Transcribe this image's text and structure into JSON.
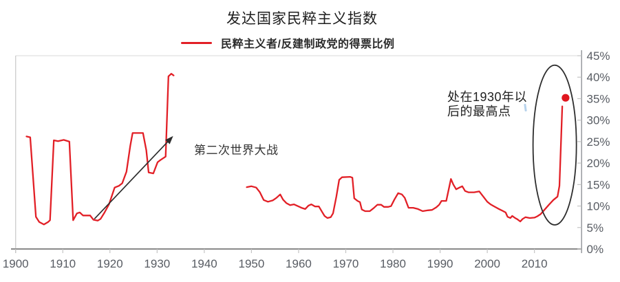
{
  "figure": {
    "title": "发达国家民粹主义指数",
    "legend_label": "民粹主义者/反建制政党的得票比例"
  },
  "annotations": {
    "ww2": "第二次世界大战",
    "peak_line1": "处在1930年以",
    "peak_line2": "后的最高点"
  },
  "colors": {
    "series_red": "#e21f26",
    "dot_red": "#e0161f",
    "axis_dark": "#8a8a8a",
    "axis_right": "#9da0a4",
    "tick_gray": "#c4c4c4",
    "border_light": "#d9d9d9",
    "tick_label": "#585c63",
    "annotation_ink": "#2d2d2d"
  },
  "chart_data": {
    "type": "line",
    "title": "发达国家民粹主义指数",
    "legend": [
      "民粹主义者/反建制政党的得票比例"
    ],
    "legend_position": "top",
    "grid": false,
    "xlabel": "",
    "ylabel": "",
    "xlim": [
      1900,
      2020
    ],
    "ylim": [
      0,
      45
    ],
    "x_ticks": [
      1900,
      1910,
      1920,
      1930,
      1940,
      1950,
      1960,
      1970,
      1980,
      1990,
      2000,
      2010
    ],
    "y_tick_values": [
      0,
      5,
      10,
      15,
      20,
      25,
      30,
      35,
      40,
      45
    ],
    "y_tick_labels": [
      "0%",
      "5%",
      "10%",
      "15%",
      "20%",
      "25%",
      "30%",
      "35%",
      "40%",
      "45%"
    ],
    "series": [
      {
        "name": "民粹主义者/反建制政党的得票比例",
        "color": "#e21f26",
        "unit": "percent vote share",
        "segments": [
          [
            [
              1902.3,
              26.2
            ],
            [
              1903.1,
              26.0
            ],
            [
              1904.3,
              7.5
            ],
            [
              1905,
              6.3
            ],
            [
              1906,
              5.7
            ],
            [
              1906.9,
              6.3
            ],
            [
              1907.3,
              6.7
            ],
            [
              1908.1,
              25.3
            ],
            [
              1909,
              25.1
            ],
            [
              1910.2,
              25.4
            ],
            [
              1911.4,
              25.0
            ],
            [
              1912.2,
              6.7
            ],
            [
              1913,
              8.3
            ],
            [
              1913.6,
              8.5
            ],
            [
              1914.3,
              7.8
            ],
            [
              1915.8,
              7.8
            ],
            [
              1916.5,
              6.8
            ],
            [
              1917.4,
              6.6
            ],
            [
              1918,
              7.0
            ],
            [
              1918.8,
              8.4
            ],
            [
              1919.8,
              10.4
            ],
            [
              1921,
              14.3
            ],
            [
              1921.9,
              14.7
            ],
            [
              1922.6,
              15.3
            ],
            [
              1923.5,
              18.0
            ],
            [
              1924.3,
              24.0
            ],
            [
              1924.8,
              27.0
            ],
            [
              1927,
              27.0
            ],
            [
              1927.7,
              23.0
            ],
            [
              1928.2,
              17.8
            ],
            [
              1929.2,
              17.6
            ],
            [
              1930.1,
              20.2
            ],
            [
              1930.7,
              20.7
            ],
            [
              1931.8,
              21.5
            ],
            [
              1932.4,
              40.2
            ],
            [
              1933,
              40.8
            ],
            [
              1933.5,
              40.4
            ]
          ],
          [
            [
              1949,
              14.4
            ],
            [
              1950,
              14.6
            ],
            [
              1951,
              14.3
            ],
            [
              1951.8,
              13.2
            ],
            [
              1952.6,
              11.4
            ],
            [
              1953.5,
              11.0
            ],
            [
              1954.5,
              11.3
            ],
            [
              1955.3,
              11.9
            ],
            [
              1956.1,
              12.7
            ],
            [
              1956.7,
              11.5
            ],
            [
              1957.4,
              10.7
            ],
            [
              1958.2,
              10.2
            ],
            [
              1959,
              10.4
            ],
            [
              1959.8,
              10.0
            ],
            [
              1960.6,
              9.6
            ],
            [
              1961.4,
              9.3
            ],
            [
              1962.1,
              10.1
            ],
            [
              1962.7,
              10.4
            ],
            [
              1963.5,
              9.9
            ],
            [
              1964.3,
              9.9
            ],
            [
              1965,
              8.6
            ],
            [
              1965.5,
              7.7
            ],
            [
              1966.1,
              7.2
            ],
            [
              1966.8,
              7.4
            ],
            [
              1967.3,
              8.3
            ],
            [
              1968,
              12.2
            ],
            [
              1968.6,
              16.1
            ],
            [
              1969.2,
              16.7
            ],
            [
              1970.9,
              16.8
            ],
            [
              1971.4,
              16.6
            ],
            [
              1971.8,
              11.8
            ],
            [
              1972.5,
              11.2
            ],
            [
              1973,
              10.9
            ],
            [
              1973.4,
              9.2
            ],
            [
              1974.1,
              8.8
            ],
            [
              1975.1,
              8.8
            ],
            [
              1975.9,
              9.5
            ],
            [
              1976.7,
              10.3
            ],
            [
              1977.5,
              10.3
            ],
            [
              1978.1,
              9.8
            ],
            [
              1979,
              9.8
            ],
            [
              1979.6,
              10.0
            ],
            [
              1980.3,
              11.5
            ],
            [
              1981.1,
              13.0
            ],
            [
              1981.9,
              12.7
            ],
            [
              1982.5,
              11.9
            ],
            [
              1983.3,
              9.6
            ],
            [
              1984.3,
              9.6
            ],
            [
              1985.3,
              9.3
            ],
            [
              1986.3,
              8.8
            ],
            [
              1987.4,
              9.0
            ],
            [
              1988.3,
              9.1
            ],
            [
              1989.2,
              9.7
            ],
            [
              1989.8,
              10.3
            ],
            [
              1990.3,
              11.2
            ],
            [
              1991.3,
              11.2
            ],
            [
              1992.3,
              16.3
            ],
            [
              1992.8,
              15.0
            ],
            [
              1993.4,
              13.9
            ],
            [
              1994.1,
              14.3
            ],
            [
              1994.7,
              14.6
            ],
            [
              1995.3,
              13.5
            ],
            [
              1996,
              13.2
            ],
            [
              1997.2,
              13.2
            ],
            [
              1998.3,
              13.4
            ],
            [
              1999.3,
              12.0
            ],
            [
              2000,
              11.0
            ],
            [
              2000.7,
              10.4
            ],
            [
              2001.5,
              9.9
            ],
            [
              2002.3,
              9.4
            ],
            [
              2003.2,
              8.9
            ],
            [
              2003.9,
              8.5
            ],
            [
              2004.3,
              7.5
            ],
            [
              2004.9,
              7.2
            ],
            [
              2005.3,
              7.7
            ],
            [
              2005.9,
              7.2
            ],
            [
              2006.4,
              6.9
            ],
            [
              2007,
              6.4
            ],
            [
              2007.5,
              7.0
            ],
            [
              2008.1,
              7.4
            ],
            [
              2009,
              7.2
            ],
            [
              2010,
              7.3
            ],
            [
              2010.6,
              7.6
            ],
            [
              2011.3,
              8.1
            ],
            [
              2012.1,
              9.1
            ],
            [
              2013,
              10.2
            ],
            [
              2014,
              11.4
            ],
            [
              2014.9,
              12.2
            ],
            [
              2015.3,
              14.7
            ],
            [
              2015.9,
              33.2
            ]
          ]
        ]
      }
    ],
    "end_point": {
      "x": 2016.6,
      "y": 35.2
    },
    "shape_annotations": [
      {
        "type": "arrow",
        "label": "第二次世界大战",
        "from": [
          1916.7,
          7.0
        ],
        "to": [
          1933.4,
          26.3
        ]
      },
      {
        "type": "ellipse",
        "label": "处在1930年以后的最高点",
        "center": [
          2014.3,
          24.2
        ],
        "rx": 4.6,
        "ry": 18.6
      }
    ]
  }
}
